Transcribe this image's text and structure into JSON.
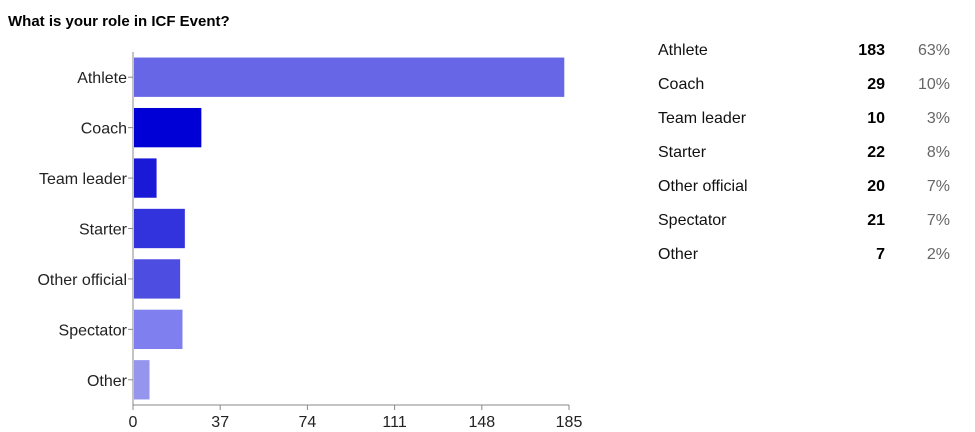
{
  "question": "What is your role in ICF Event?",
  "chart_data": {
    "type": "bar",
    "orientation": "horizontal",
    "title": "What is your role in ICF Event?",
    "categories": [
      "Athlete",
      "Coach",
      "Team leader",
      "Starter",
      "Other official",
      "Spectator",
      "Other"
    ],
    "values": [
      183,
      29,
      10,
      22,
      20,
      21,
      7
    ],
    "colors": [
      "#6666e6",
      "#0000d6",
      "#1a1ad6",
      "#3333dd",
      "#4d4de2",
      "#7f7ff0",
      "#9595ee"
    ],
    "xlim": [
      0,
      185
    ],
    "xticks": [
      "0",
      "37",
      "74",
      "111",
      "148",
      "185"
    ],
    "grid": false,
    "legend": "none"
  },
  "summary": [
    {
      "label": "Athlete",
      "count": "183",
      "percent": "63%"
    },
    {
      "label": "Coach",
      "count": "29",
      "percent": "10%"
    },
    {
      "label": "Team leader",
      "count": "10",
      "percent": "3%"
    },
    {
      "label": "Starter",
      "count": "22",
      "percent": "8%"
    },
    {
      "label": "Other official",
      "count": "20",
      "percent": "7%"
    },
    {
      "label": "Spectator",
      "count": "21",
      "percent": "7%"
    },
    {
      "label": "Other",
      "count": "7",
      "percent": "2%"
    }
  ]
}
